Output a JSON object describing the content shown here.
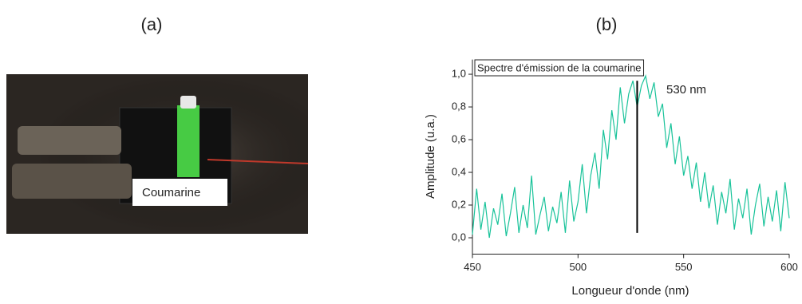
{
  "panel_a": {
    "label": "(a)",
    "annotation": "Coumarine"
  },
  "chart_data": {
    "type": "line",
    "panel_label": "(b)",
    "title": "Spectre d'émission de la coumarine",
    "x_label": "Longueur d'onde (nm)",
    "y_label": "Amplitude (u.a.)",
    "x": [
      450,
      452,
      454,
      456,
      458,
      460,
      462,
      464,
      466,
      468,
      470,
      472,
      474,
      476,
      478,
      480,
      482,
      484,
      486,
      488,
      490,
      492,
      494,
      496,
      498,
      500,
      502,
      504,
      506,
      508,
      510,
      512,
      514,
      516,
      518,
      520,
      522,
      524,
      526,
      528,
      530,
      532,
      534,
      536,
      538,
      540,
      542,
      544,
      546,
      548,
      550,
      552,
      554,
      556,
      558,
      560,
      562,
      564,
      566,
      568,
      570,
      572,
      574,
      576,
      578,
      580,
      582,
      584,
      586,
      588,
      590,
      592,
      594,
      596,
      598,
      600
    ],
    "series": [
      {
        "name": "Spectre",
        "color": "#19c39a",
        "values": [
          0.02,
          0.3,
          0.05,
          0.22,
          0.0,
          0.18,
          0.08,
          0.27,
          0.01,
          0.15,
          0.31,
          0.03,
          0.2,
          0.06,
          0.38,
          0.02,
          0.14,
          0.25,
          0.04,
          0.19,
          0.09,
          0.28,
          0.03,
          0.35,
          0.1,
          0.22,
          0.45,
          0.15,
          0.38,
          0.52,
          0.3,
          0.66,
          0.48,
          0.78,
          0.6,
          0.92,
          0.7,
          0.88,
          0.96,
          0.8,
          0.93,
          0.99,
          0.85,
          0.95,
          0.74,
          0.82,
          0.55,
          0.7,
          0.45,
          0.62,
          0.38,
          0.5,
          0.3,
          0.46,
          0.22,
          0.4,
          0.18,
          0.32,
          0.08,
          0.28,
          0.15,
          0.36,
          0.05,
          0.24,
          0.12,
          0.3,
          0.02,
          0.2,
          0.33,
          0.07,
          0.25,
          0.1,
          0.29,
          0.04,
          0.34,
          0.12
        ]
      }
    ],
    "marker": {
      "label": "530 nm",
      "x": 528,
      "y": [
        0.03,
        0.96
      ]
    },
    "xlim": [
      450,
      600
    ],
    "xticks": [
      450,
      500,
      550,
      600
    ],
    "ylim": [
      -0.1,
      1.09
    ],
    "yticks": [
      {
        "value": 0,
        "label": "0,0"
      },
      {
        "value": 0.2,
        "label": "0,2"
      },
      {
        "value": 0.4,
        "label": "0,4"
      },
      {
        "value": 0.6,
        "label": "0,6"
      },
      {
        "value": 0.8,
        "label": "0,8"
      },
      {
        "value": 1.0,
        "label": "1,0"
      }
    ]
  }
}
